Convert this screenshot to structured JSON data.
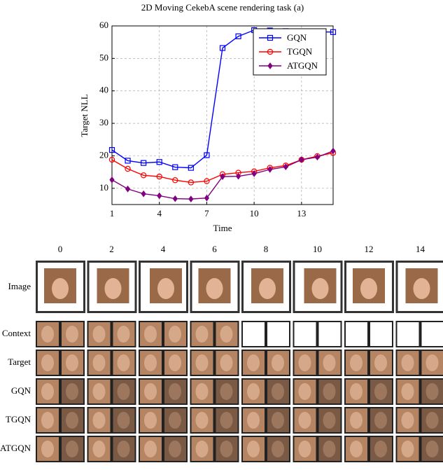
{
  "chart_data": {
    "type": "line",
    "title": "2D Moving CekebA scene rendering task (a)",
    "x_label": "Time",
    "y_label": "Target NLL",
    "x": [
      1,
      2,
      3,
      4,
      5,
      6,
      7,
      8,
      9,
      10,
      11,
      12,
      13,
      14,
      15
    ],
    "series": [
      {
        "name": "GQN",
        "color": "#0000ff",
        "marker": "square",
        "values": [
          21.8,
          18.5,
          17.8,
          18.1,
          16.5,
          16.3,
          20.2,
          53.2,
          56.8,
          58.7,
          58.6,
          58.4,
          58.3,
          58.2,
          58.1
        ]
      },
      {
        "name": "TGQN",
        "color": "#ff0000",
        "marker": "circle",
        "values": [
          18.8,
          16.0,
          14.0,
          13.6,
          12.5,
          11.8,
          12.2,
          14.3,
          14.8,
          15.2,
          16.3,
          17.0,
          18.8,
          19.9,
          20.9
        ]
      },
      {
        "name": "ATGQN",
        "color": "#800080",
        "marker": "diamond",
        "values": [
          12.6,
          9.8,
          8.3,
          7.7,
          6.8,
          6.7,
          7.0,
          13.6,
          13.7,
          14.5,
          15.8,
          16.6,
          18.8,
          19.6,
          21.5
        ]
      }
    ],
    "xlim": [
      1,
      15
    ],
    "xticks": [
      1,
      4,
      7,
      10,
      13
    ],
    "ylim": [
      5,
      60
    ],
    "yticks": [
      10,
      20,
      30,
      40,
      50,
      60
    ],
    "grid": true,
    "legend": "upper right"
  },
  "grid": {
    "columns": [
      "0",
      "2",
      "4",
      "6",
      "8",
      "10",
      "12",
      "14"
    ],
    "rows": [
      "Image",
      "Context",
      "Target",
      "GQN",
      "TGQN",
      "ATGQN"
    ]
  }
}
